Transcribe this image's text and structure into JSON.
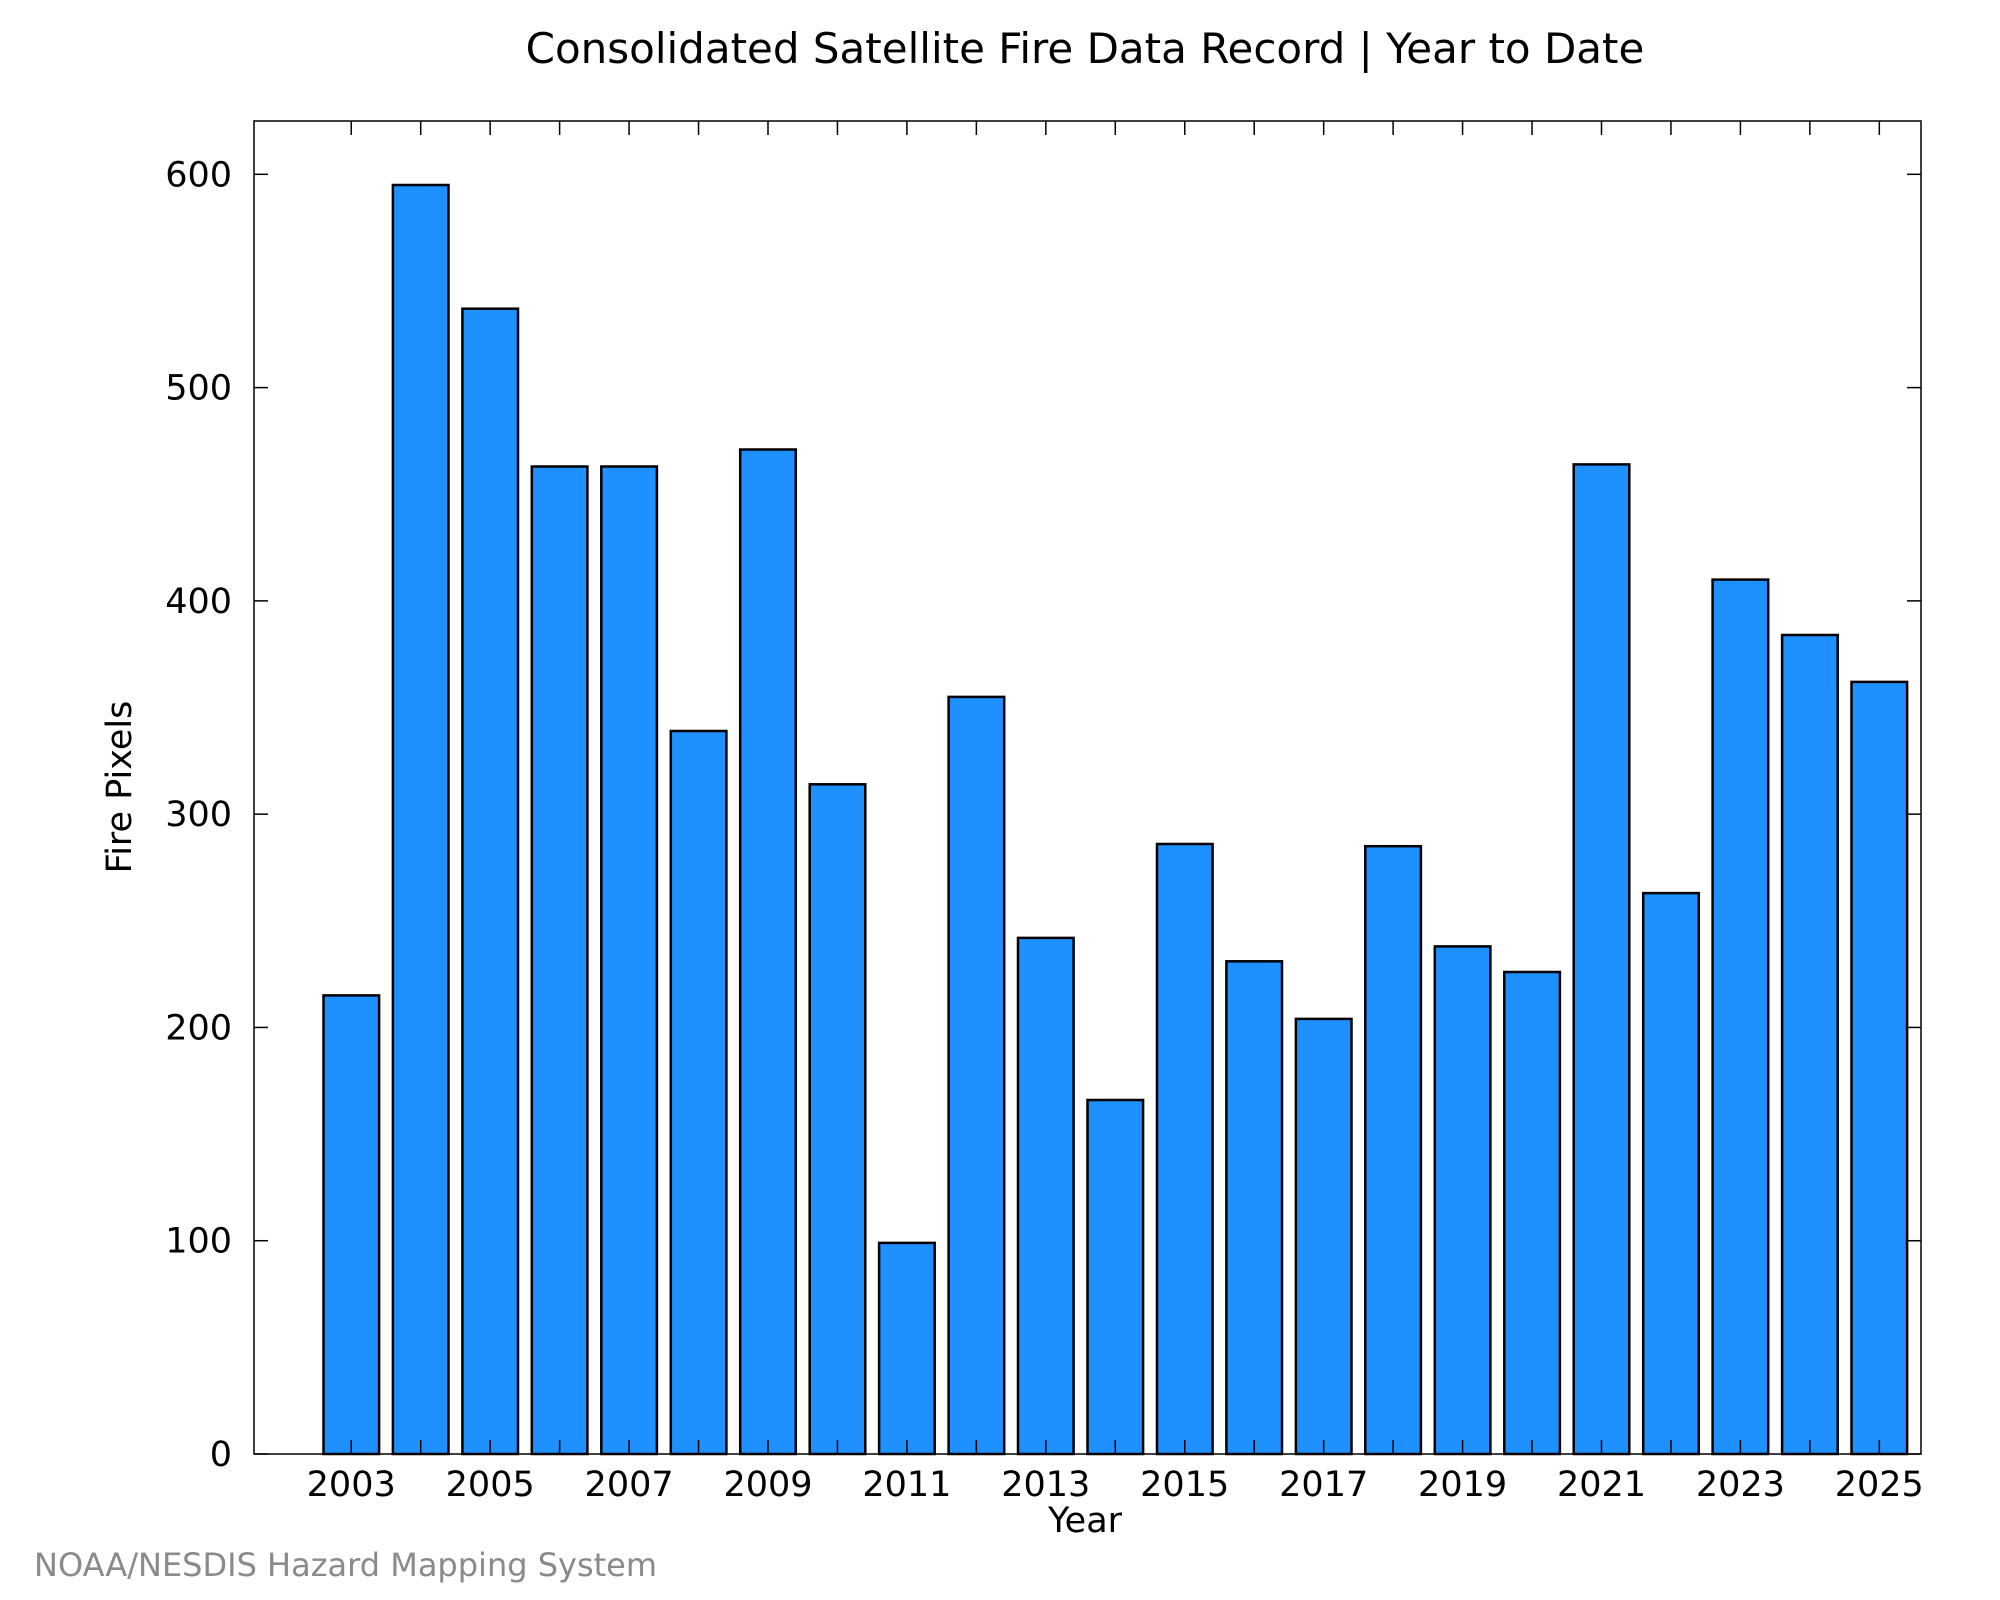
{
  "chart_data": {
    "type": "bar",
    "title": "Consolidated Satellite Fire Data Record | Year to Date",
    "xlabel": "Year",
    "ylabel": "Fire Pixels",
    "categories": [
      2003,
      2004,
      2005,
      2006,
      2007,
      2008,
      2009,
      2010,
      2011,
      2012,
      2013,
      2014,
      2015,
      2016,
      2017,
      2018,
      2019,
      2020,
      2021,
      2022,
      2023,
      2024,
      2025
    ],
    "values": [
      215,
      595,
      537,
      463,
      463,
      339,
      471,
      314,
      99,
      355,
      242,
      166,
      286,
      231,
      204,
      285,
      238,
      226,
      464,
      263,
      410,
      384,
      362
    ],
    "xtick_labels": [
      "2003",
      "2005",
      "2007",
      "2009",
      "2011",
      "2013",
      "2015",
      "2017",
      "2019",
      "2021",
      "2023",
      "2025"
    ],
    "yticks": [
      0,
      100,
      200,
      300,
      400,
      500,
      600
    ],
    "ylim": [
      0,
      625
    ],
    "xlim": [
      2001.6,
      2025.6
    ],
    "bar_color": "#1e90ff",
    "bar_edge_color": "#000000",
    "grid": false,
    "legend": "none"
  },
  "source": "NOAA/NESDIS Hazard Mapping System"
}
